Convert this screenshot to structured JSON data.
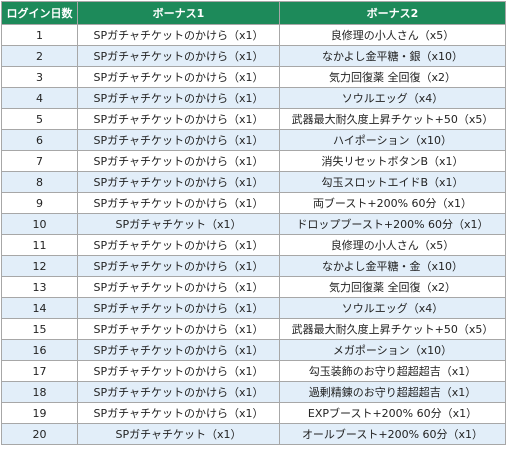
{
  "table": {
    "headers": [
      "ログイン日数",
      "ボーナス1",
      "ボーナス2"
    ],
    "rows": [
      [
        "1",
        "SPガチャチケットのかけら（x1）",
        "良修理の小人さん（x5）"
      ],
      [
        "2",
        "SPガチャチケットのかけら（x1）",
        "なかよし金平糖・銀（x10）"
      ],
      [
        "3",
        "SPガチャチケットのかけら（x1）",
        "気力回復薬 全回復（x2）"
      ],
      [
        "4",
        "SPガチャチケットのかけら（x1）",
        "ソウルエッグ（x4）"
      ],
      [
        "5",
        "SPガチャチケットのかけら（x1）",
        "武器最大耐久度上昇チケット+50（x5）"
      ],
      [
        "6",
        "SPガチャチケットのかけら（x1）",
        "ハイポーション（x10）"
      ],
      [
        "7",
        "SPガチャチケットのかけら（x1）",
        "消失リセットボタンB（x1）"
      ],
      [
        "8",
        "SPガチャチケットのかけら（x1）",
        "勾玉スロットエイドB（x1）"
      ],
      [
        "9",
        "SPガチャチケットのかけら（x1）",
        "両ブースト+200% 60分（x1）"
      ],
      [
        "10",
        "SPガチャチケット（x1）",
        "ドロップブースト+200% 60分（x1）"
      ],
      [
        "11",
        "SPガチャチケットのかけら（x1）",
        "良修理の小人さん（x5）"
      ],
      [
        "12",
        "SPガチャチケットのかけら（x1）",
        "なかよし金平糖・金（x10）"
      ],
      [
        "13",
        "SPガチャチケットのかけら（x1）",
        "気力回復薬 全回復（x2）"
      ],
      [
        "14",
        "SPガチャチケットのかけら（x1）",
        "ソウルエッグ（x4）"
      ],
      [
        "15",
        "SPガチャチケットのかけら（x1）",
        "武器最大耐久度上昇チケット+50（x5）"
      ],
      [
        "16",
        "SPガチャチケットのかけら（x1）",
        "メガポーション（x10）"
      ],
      [
        "17",
        "SPガチャチケットのかけら（x1）",
        "勾玉装飾のお守り超超超吉（x1）"
      ],
      [
        "18",
        "SPガチャチケットのかけら（x1）",
        "過剰精錬のお守り超超超吉（x1）"
      ],
      [
        "19",
        "SPガチャチケットのかけら（x1）",
        "EXPブースト+200% 60分（x1）"
      ],
      [
        "20",
        "SPガチャチケット（x1）",
        "オールブースト+200% 60分（x1）"
      ]
    ]
  },
  "colors": {
    "header_bg": "#1d8a5a",
    "header_text": "#ffffff",
    "row_alt_bg": "#e2eef9",
    "border": "#a7a7a7"
  }
}
